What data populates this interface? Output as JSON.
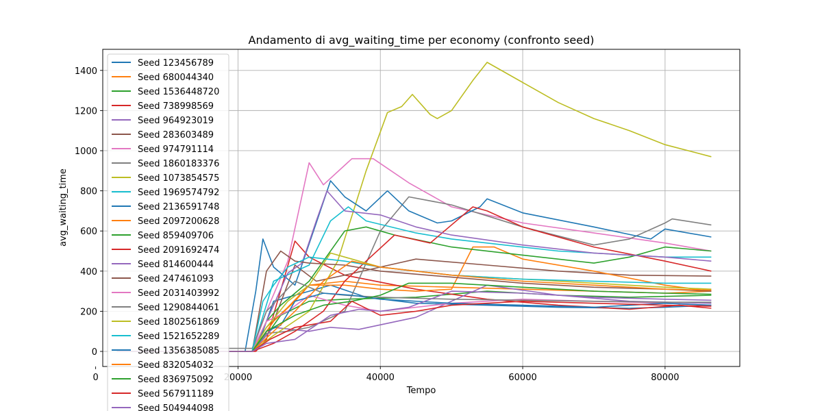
{
  "chart_data": {
    "type": "line",
    "title": "Andamento di avg_waiting_time per economy (confronto seed)",
    "xlabel": "Tempo",
    "ylabel": "avg_waiting_time",
    "xlim": [
      1000,
      90500
    ],
    "ylim": [
      -75,
      1505
    ],
    "xticks": [
      0,
      20000,
      40000,
      60000,
      80000
    ],
    "yticks": [
      0,
      200,
      400,
      600,
      800,
      1000,
      1200,
      1400
    ],
    "grid": true,
    "legend_position": "upper-left",
    "series": [
      {
        "name": "Seed 123456789",
        "color": "#1f77b4",
        "x": [
          3000,
          22000,
          23500,
          25000,
          30000,
          33000,
          38000,
          45000,
          55000,
          65000,
          75000,
          80000,
          86500
        ],
        "y": [
          0,
          0,
          100,
          250,
          300,
          330,
          270,
          240,
          230,
          220,
          215,
          220,
          230
        ]
      },
      {
        "name": "Seed 680044340",
        "color": "#ff7f0e",
        "x": [
          3000,
          22000,
          24000,
          27000,
          30000,
          35000,
          40000,
          50000,
          60000,
          70000,
          80000,
          86500
        ],
        "y": [
          0,
          0,
          120,
          220,
          330,
          350,
          330,
          320,
          310,
          300,
          290,
          300
        ]
      },
      {
        "name": "Seed 1536448720",
        "color": "#2ca02c",
        "x": [
          3000,
          22000,
          24000,
          26000,
          30000,
          35000,
          45000,
          55000,
          65000,
          75000,
          86500
        ],
        "y": [
          0,
          0,
          80,
          180,
          250,
          260,
          270,
          300,
          280,
          270,
          280
        ]
      },
      {
        "name": "Seed 738998569",
        "color": "#d62728",
        "x": [
          3000,
          22500,
          24000,
          28000,
          30000,
          35000,
          45000,
          55000,
          65000,
          75000,
          82000,
          86500
        ],
        "y": [
          0,
          0,
          60,
          550,
          470,
          380,
          310,
          260,
          230,
          210,
          230,
          215
        ]
      },
      {
        "name": "Seed 964923019",
        "color": "#9467bd",
        "x": [
          3000,
          22000,
          25000,
          30000,
          33000,
          37000,
          45000,
          55000,
          65000,
          75000,
          86500
        ],
        "y": [
          0,
          0,
          120,
          100,
          120,
          110,
          170,
          330,
          280,
          250,
          240
        ]
      },
      {
        "name": "Seed 283603489",
        "color": "#8c564b",
        "x": [
          3000,
          22000,
          25000,
          28000,
          31000,
          35000,
          40000,
          45000,
          55000,
          65000,
          75000,
          86500
        ],
        "y": [
          0,
          0,
          150,
          430,
          350,
          380,
          420,
          460,
          430,
          400,
          380,
          375
        ]
      },
      {
        "name": "Seed 974791114",
        "color": "#e377c2",
        "x": [
          3000,
          22000,
          24000,
          27000,
          30000,
          32000,
          36000,
          39000,
          44000,
          50000,
          60000,
          70000,
          80000,
          86500
        ],
        "y": [
          0,
          0,
          200,
          450,
          940,
          830,
          960,
          960,
          840,
          720,
          640,
          590,
          540,
          500
        ]
      },
      {
        "name": "Seed 1860183376",
        "color": "#7f7f7f",
        "x": [
          3000,
          22000,
          24000,
          27000,
          30000,
          35000,
          40000,
          44000,
          50000,
          60000,
          70000,
          75000,
          80000,
          81000,
          86500
        ],
        "y": [
          0,
          0,
          90,
          100,
          120,
          200,
          600,
          770,
          730,
          620,
          530,
          560,
          640,
          660,
          630
        ]
      },
      {
        "name": "Seed 1073854575",
        "color": "#bcbd22",
        "x": [
          3000,
          22000,
          25000,
          30000,
          34000,
          38000,
          41000,
          43000,
          44500,
          47000,
          48000,
          50000,
          53000,
          55000,
          60000,
          65000,
          70000,
          75000,
          80000,
          86500
        ],
        "y": [
          0,
          0,
          80,
          200,
          450,
          900,
          1190,
          1220,
          1280,
          1180,
          1160,
          1200,
          1350,
          1440,
          1340,
          1240,
          1160,
          1100,
          1030,
          970
        ]
      },
      {
        "name": "Seed 1969574792",
        "color": "#17becf",
        "x": [
          3000,
          22000,
          25000,
          30000,
          33000,
          35500,
          38000,
          45000,
          50000,
          55000,
          65000,
          75000,
          80000,
          86500
        ],
        "y": [
          0,
          0,
          350,
          430,
          650,
          720,
          650,
          590,
          560,
          540,
          500,
          480,
          470,
          470
        ]
      },
      {
        "name": "Seed 2136591748",
        "color": "#1f77b4",
        "x": [
          3000,
          21000,
          22500,
          23500,
          25000,
          28000,
          31000,
          33000,
          35000,
          38000,
          41000,
          44000,
          48000,
          50000,
          54000,
          55000,
          60000,
          70000,
          78000,
          80000,
          86500
        ],
        "y": [
          0,
          0,
          300,
          560,
          420,
          330,
          640,
          850,
          770,
          700,
          800,
          700,
          640,
          650,
          720,
          760,
          690,
          620,
          560,
          610,
          570
        ]
      },
      {
        "name": "Seed 2097200628",
        "color": "#ff7f0e",
        "x": [
          3000,
          22000,
          25000,
          28000,
          30000,
          35000,
          40000,
          45000,
          50000,
          53000,
          56000,
          60000,
          70000,
          80000,
          86500
        ],
        "y": [
          0,
          0,
          150,
          250,
          330,
          330,
          310,
          300,
          310,
          520,
          520,
          460,
          400,
          330,
          300
        ]
      },
      {
        "name": "Seed 859409706",
        "color": "#2ca02c",
        "x": [
          3000,
          22000,
          24000,
          26000,
          30000,
          35000,
          38000,
          42000,
          50000,
          60000,
          70000,
          75000,
          80000,
          86500
        ],
        "y": [
          0,
          0,
          150,
          230,
          350,
          600,
          620,
          580,
          520,
          480,
          440,
          470,
          520,
          500
        ]
      },
      {
        "name": "Seed 2091692474",
        "color": "#d62728",
        "x": [
          3000,
          22000,
          25000,
          28000,
          32000,
          35000,
          38000,
          42000,
          47000,
          53000,
          55000,
          60000,
          70000,
          80000,
          86500
        ],
        "y": [
          0,
          0,
          40,
          100,
          200,
          350,
          450,
          580,
          540,
          720,
          700,
          620,
          520,
          450,
          400
        ]
      },
      {
        "name": "Seed 814600444",
        "color": "#9467bd",
        "x": [
          3000,
          22000,
          24000,
          27000,
          29000,
          31000,
          32500,
          35000,
          40000,
          45000,
          50000,
          60000,
          70000,
          80000,
          86500
        ],
        "y": [
          0,
          0,
          150,
          390,
          440,
          650,
          800,
          700,
          680,
          620,
          580,
          530,
          490,
          470,
          450
        ]
      },
      {
        "name": "Seed 247461093",
        "color": "#8c564b",
        "x": [
          3000,
          22000,
          24000,
          26000,
          28000,
          30000,
          35000,
          40000,
          50000,
          60000,
          70000,
          80000,
          86500
        ],
        "y": [
          0,
          0,
          400,
          500,
          450,
          440,
          430,
          400,
          370,
          340,
          320,
          310,
          300
        ]
      },
      {
        "name": "Seed 2031403992",
        "color": "#e377c2",
        "x": [
          3000,
          22000,
          24000,
          27000,
          30000,
          35000,
          40000,
          50000,
          60000,
          70000,
          80000,
          86500
        ],
        "y": [
          0,
          0,
          150,
          200,
          280,
          230,
          200,
          240,
          260,
          250,
          240,
          230
        ]
      },
      {
        "name": "Seed 1290844061",
        "color": "#7f7f7f",
        "x": [
          3000,
          16000,
          16500,
          22000,
          24000,
          28000,
          32000,
          35000,
          40000,
          50000,
          60000,
          70000,
          80000,
          86500
        ],
        "y": [
          0,
          0,
          15,
          15,
          200,
          350,
          290,
          280,
          270,
          260,
          255,
          250,
          245,
          245
        ]
      },
      {
        "name": "Seed 1802561869",
        "color": "#bcbd22",
        "x": [
          3000,
          22000,
          24000,
          27000,
          30000,
          33000,
          36000,
          40000,
          45000,
          50000,
          60000,
          70000,
          80000,
          86500
        ],
        "y": [
          0,
          0,
          120,
          250,
          330,
          490,
          460,
          420,
          400,
          380,
          360,
          340,
          320,
          310
        ]
      },
      {
        "name": "Seed 1521652289",
        "color": "#17becf",
        "x": [
          3000,
          22000,
          23500,
          25000,
          27000,
          30000,
          35000,
          40000,
          45000,
          50000,
          60000,
          70000,
          80000,
          86500
        ],
        "y": [
          0,
          0,
          250,
          330,
          420,
          470,
          450,
          420,
          400,
          380,
          360,
          350,
          340,
          340
        ]
      },
      {
        "name": "Seed 1356385085",
        "color": "#1f77b4",
        "x": [
          3000,
          22000,
          24000,
          26000,
          28000,
          32000,
          36000,
          40000,
          50000,
          60000,
          70000,
          80000,
          86500
        ],
        "y": [
          0,
          0,
          100,
          130,
          250,
          290,
          280,
          260,
          240,
          230,
          220,
          240,
          230
        ]
      },
      {
        "name": "Seed 832054032",
        "color": "#ff7f0e",
        "x": [
          3000,
          22000,
          25000,
          28000,
          32000,
          36000,
          40000,
          50000,
          60000,
          70000,
          80000,
          86500
        ],
        "y": [
          0,
          0,
          100,
          200,
          350,
          450,
          420,
          380,
          350,
          330,
          310,
          305
        ]
      },
      {
        "name": "Seed 836975092",
        "color": "#2ca02c",
        "x": [
          3000,
          22000,
          24000,
          28000,
          32000,
          36000,
          40000,
          44000,
          50000,
          60000,
          70000,
          80000,
          86500
        ],
        "y": [
          0,
          0,
          100,
          180,
          230,
          250,
          280,
          340,
          340,
          320,
          300,
          290,
          285
        ]
      },
      {
        "name": "Seed 567911189",
        "color": "#d62728",
        "x": [
          3000,
          22000,
          24500,
          28000,
          33000,
          36000,
          40000,
          45000,
          50000,
          60000,
          70000,
          80000,
          86500
        ],
        "y": [
          0,
          0,
          60,
          120,
          150,
          250,
          180,
          200,
          230,
          250,
          240,
          230,
          225
        ]
      },
      {
        "name": "Seed 504944098",
        "color": "#9467bd",
        "x": [
          3000,
          22000,
          24000,
          28000,
          33000,
          37000,
          40000,
          44000,
          50000,
          60000,
          70000,
          80000,
          86500
        ],
        "y": [
          0,
          0,
          40,
          60,
          180,
          210,
          200,
          220,
          300,
          290,
          270,
          260,
          255
        ]
      }
    ]
  }
}
